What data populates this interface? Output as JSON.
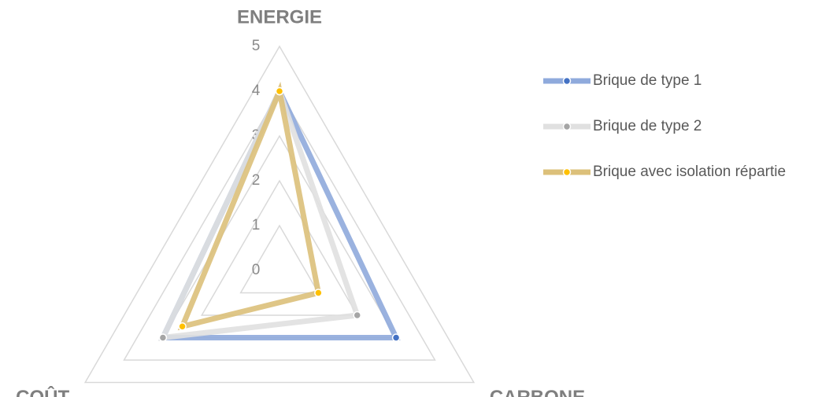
{
  "chart_data": {
    "type": "radar",
    "categories": [
      "ENERGIE",
      "CARBONE",
      "COÛT"
    ],
    "rlim": [
      0,
      5
    ],
    "rticks": [
      0,
      1,
      2,
      3,
      4,
      5
    ],
    "grid": true,
    "legend": "right",
    "series": [
      {
        "name": "Brique de type 1",
        "color": "#8faadc",
        "marker_color": "#4472c4",
        "values": [
          4,
          3,
          3
        ]
      },
      {
        "name": "Brique de type 2",
        "color": "#e0e0e0",
        "marker_color": "#a5a5a5",
        "values": [
          4,
          2,
          3
        ]
      },
      {
        "name": "Brique avec isolation répartie",
        "color": "#dcc07a",
        "marker_color": "#ffc000",
        "values": [
          4,
          1,
          2.5
        ]
      }
    ]
  }
}
